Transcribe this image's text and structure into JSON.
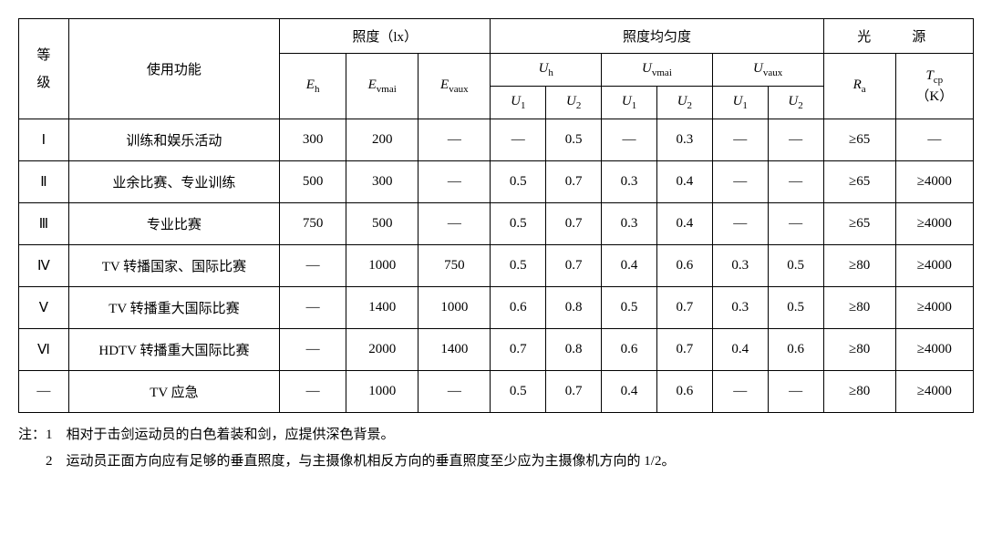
{
  "columns": {
    "grade": "等\n级",
    "function": "使用功能",
    "illuminance_group": "照度（lx）",
    "Eh": "E",
    "Eh_sub": "h",
    "Evmai": "E",
    "Evmai_sub": "vmai",
    "Evaux": "E",
    "Evaux_sub": "vaux",
    "uniformity_group": "照度均匀度",
    "Uh": "U",
    "Uh_sub": "h",
    "Uvmai": "U",
    "Uvmai_sub": "vmai",
    "Uvaux": "U",
    "Uvaux_sub": "vaux",
    "U1": "U",
    "U1_sub": "1",
    "U2": "U",
    "U2_sub": "2",
    "light_group": "光　源",
    "Ra": "R",
    "Ra_sub": "a",
    "Tcp": "T",
    "Tcp_sub": "cp",
    "Tcp_unit": "（K）"
  },
  "rows": [
    {
      "grade": "Ⅰ",
      "func": "训练和娱乐活动",
      "Eh": "300",
      "Evmai": "200",
      "Evaux": "—",
      "Uh1": "—",
      "Uh2": "0.5",
      "Uvmai1": "—",
      "Uvmai2": "0.3",
      "Uvaux1": "—",
      "Uvaux2": "—",
      "Ra": "≥65",
      "Tcp": "—"
    },
    {
      "grade": "Ⅱ",
      "func": "业余比赛、专业训练",
      "Eh": "500",
      "Evmai": "300",
      "Evaux": "—",
      "Uh1": "0.5",
      "Uh2": "0.7",
      "Uvmai1": "0.3",
      "Uvmai2": "0.4",
      "Uvaux1": "—",
      "Uvaux2": "—",
      "Ra": "≥65",
      "Tcp": "≥4000"
    },
    {
      "grade": "Ⅲ",
      "func": "专业比赛",
      "Eh": "750",
      "Evmai": "500",
      "Evaux": "—",
      "Uh1": "0.5",
      "Uh2": "0.7",
      "Uvmai1": "0.3",
      "Uvmai2": "0.4",
      "Uvaux1": "—",
      "Uvaux2": "—",
      "Ra": "≥65",
      "Tcp": "≥4000"
    },
    {
      "grade": "Ⅳ",
      "func": "TV 转播国家、国际比赛",
      "Eh": "—",
      "Evmai": "1000",
      "Evaux": "750",
      "Uh1": "0.5",
      "Uh2": "0.7",
      "Uvmai1": "0.4",
      "Uvmai2": "0.6",
      "Uvaux1": "0.3",
      "Uvaux2": "0.5",
      "Ra": "≥80",
      "Tcp": "≥4000"
    },
    {
      "grade": "Ⅴ",
      "func": "TV 转播重大国际比赛",
      "Eh": "—",
      "Evmai": "1400",
      "Evaux": "1000",
      "Uh1": "0.6",
      "Uh2": "0.8",
      "Uvmai1": "0.5",
      "Uvmai2": "0.7",
      "Uvaux1": "0.3",
      "Uvaux2": "0.5",
      "Ra": "≥80",
      "Tcp": "≥4000"
    },
    {
      "grade": "Ⅵ",
      "func": "HDTV 转播重大国际比赛",
      "Eh": "—",
      "Evmai": "2000",
      "Evaux": "1400",
      "Uh1": "0.7",
      "Uh2": "0.8",
      "Uvmai1": "0.6",
      "Uvmai2": "0.7",
      "Uvaux1": "0.4",
      "Uvaux2": "0.6",
      "Ra": "≥80",
      "Tcp": "≥4000"
    },
    {
      "grade": "—",
      "func": "TV 应急",
      "Eh": "—",
      "Evmai": "1000",
      "Evaux": "—",
      "Uh1": "0.5",
      "Uh2": "0.7",
      "Uvmai1": "0.4",
      "Uvmai2": "0.6",
      "Uvaux1": "—",
      "Uvaux2": "—",
      "Ra": "≥80",
      "Tcp": "≥4000"
    }
  ],
  "notes": {
    "prefix": "注：",
    "items": [
      {
        "num": "1",
        "text": "相对于击剑运动员的白色着装和剑，应提供深色背景。"
      },
      {
        "num": "2",
        "text": "运动员正面方向应有足够的垂直照度，与主摄像机相反方向的垂直照度至少应为主摄像机方向的 1/2。"
      }
    ]
  },
  "style": {
    "col_widths": [
      "4.5%",
      "19%",
      "6%",
      "6.5%",
      "6.5%",
      "5%",
      "5%",
      "5%",
      "5%",
      "5%",
      "5%",
      "6.5%",
      "7%"
    ]
  }
}
